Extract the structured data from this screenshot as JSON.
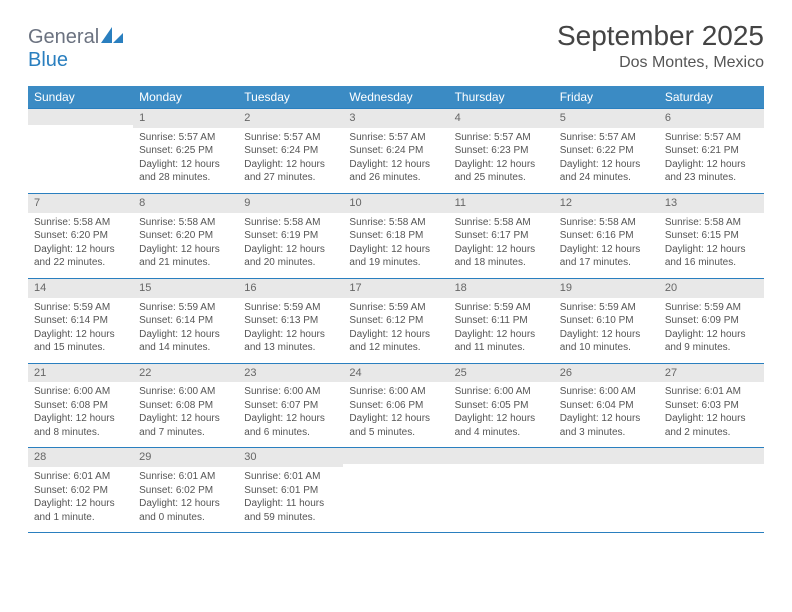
{
  "brand": {
    "part1": "General",
    "part2": "Blue",
    "color1": "#6b7280",
    "color2": "#2a7fbf"
  },
  "title": "September 2025",
  "location": "Dos Montes, Mexico",
  "header_bg": "#3b8bc4",
  "row_border": "#2a7fbf",
  "daynum_bg": "#e8e8e8",
  "days": [
    "Sunday",
    "Monday",
    "Tuesday",
    "Wednesday",
    "Thursday",
    "Friday",
    "Saturday"
  ],
  "weeks": [
    [
      {
        "empty": true
      },
      {
        "n": "1",
        "sunrise": "Sunrise: 5:57 AM",
        "sunset": "Sunset: 6:25 PM",
        "day1": "Daylight: 12 hours",
        "day2": "and 28 minutes."
      },
      {
        "n": "2",
        "sunrise": "Sunrise: 5:57 AM",
        "sunset": "Sunset: 6:24 PM",
        "day1": "Daylight: 12 hours",
        "day2": "and 27 minutes."
      },
      {
        "n": "3",
        "sunrise": "Sunrise: 5:57 AM",
        "sunset": "Sunset: 6:24 PM",
        "day1": "Daylight: 12 hours",
        "day2": "and 26 minutes."
      },
      {
        "n": "4",
        "sunrise": "Sunrise: 5:57 AM",
        "sunset": "Sunset: 6:23 PM",
        "day1": "Daylight: 12 hours",
        "day2": "and 25 minutes."
      },
      {
        "n": "5",
        "sunrise": "Sunrise: 5:57 AM",
        "sunset": "Sunset: 6:22 PM",
        "day1": "Daylight: 12 hours",
        "day2": "and 24 minutes."
      },
      {
        "n": "6",
        "sunrise": "Sunrise: 5:57 AM",
        "sunset": "Sunset: 6:21 PM",
        "day1": "Daylight: 12 hours",
        "day2": "and 23 minutes."
      }
    ],
    [
      {
        "n": "7",
        "sunrise": "Sunrise: 5:58 AM",
        "sunset": "Sunset: 6:20 PM",
        "day1": "Daylight: 12 hours",
        "day2": "and 22 minutes."
      },
      {
        "n": "8",
        "sunrise": "Sunrise: 5:58 AM",
        "sunset": "Sunset: 6:20 PM",
        "day1": "Daylight: 12 hours",
        "day2": "and 21 minutes."
      },
      {
        "n": "9",
        "sunrise": "Sunrise: 5:58 AM",
        "sunset": "Sunset: 6:19 PM",
        "day1": "Daylight: 12 hours",
        "day2": "and 20 minutes."
      },
      {
        "n": "10",
        "sunrise": "Sunrise: 5:58 AM",
        "sunset": "Sunset: 6:18 PM",
        "day1": "Daylight: 12 hours",
        "day2": "and 19 minutes."
      },
      {
        "n": "11",
        "sunrise": "Sunrise: 5:58 AM",
        "sunset": "Sunset: 6:17 PM",
        "day1": "Daylight: 12 hours",
        "day2": "and 18 minutes."
      },
      {
        "n": "12",
        "sunrise": "Sunrise: 5:58 AM",
        "sunset": "Sunset: 6:16 PM",
        "day1": "Daylight: 12 hours",
        "day2": "and 17 minutes."
      },
      {
        "n": "13",
        "sunrise": "Sunrise: 5:58 AM",
        "sunset": "Sunset: 6:15 PM",
        "day1": "Daylight: 12 hours",
        "day2": "and 16 minutes."
      }
    ],
    [
      {
        "n": "14",
        "sunrise": "Sunrise: 5:59 AM",
        "sunset": "Sunset: 6:14 PM",
        "day1": "Daylight: 12 hours",
        "day2": "and 15 minutes."
      },
      {
        "n": "15",
        "sunrise": "Sunrise: 5:59 AM",
        "sunset": "Sunset: 6:14 PM",
        "day1": "Daylight: 12 hours",
        "day2": "and 14 minutes."
      },
      {
        "n": "16",
        "sunrise": "Sunrise: 5:59 AM",
        "sunset": "Sunset: 6:13 PM",
        "day1": "Daylight: 12 hours",
        "day2": "and 13 minutes."
      },
      {
        "n": "17",
        "sunrise": "Sunrise: 5:59 AM",
        "sunset": "Sunset: 6:12 PM",
        "day1": "Daylight: 12 hours",
        "day2": "and 12 minutes."
      },
      {
        "n": "18",
        "sunrise": "Sunrise: 5:59 AM",
        "sunset": "Sunset: 6:11 PM",
        "day1": "Daylight: 12 hours",
        "day2": "and 11 minutes."
      },
      {
        "n": "19",
        "sunrise": "Sunrise: 5:59 AM",
        "sunset": "Sunset: 6:10 PM",
        "day1": "Daylight: 12 hours",
        "day2": "and 10 minutes."
      },
      {
        "n": "20",
        "sunrise": "Sunrise: 5:59 AM",
        "sunset": "Sunset: 6:09 PM",
        "day1": "Daylight: 12 hours",
        "day2": "and 9 minutes."
      }
    ],
    [
      {
        "n": "21",
        "sunrise": "Sunrise: 6:00 AM",
        "sunset": "Sunset: 6:08 PM",
        "day1": "Daylight: 12 hours",
        "day2": "and 8 minutes."
      },
      {
        "n": "22",
        "sunrise": "Sunrise: 6:00 AM",
        "sunset": "Sunset: 6:08 PM",
        "day1": "Daylight: 12 hours",
        "day2": "and 7 minutes."
      },
      {
        "n": "23",
        "sunrise": "Sunrise: 6:00 AM",
        "sunset": "Sunset: 6:07 PM",
        "day1": "Daylight: 12 hours",
        "day2": "and 6 minutes."
      },
      {
        "n": "24",
        "sunrise": "Sunrise: 6:00 AM",
        "sunset": "Sunset: 6:06 PM",
        "day1": "Daylight: 12 hours",
        "day2": "and 5 minutes."
      },
      {
        "n": "25",
        "sunrise": "Sunrise: 6:00 AM",
        "sunset": "Sunset: 6:05 PM",
        "day1": "Daylight: 12 hours",
        "day2": "and 4 minutes."
      },
      {
        "n": "26",
        "sunrise": "Sunrise: 6:00 AM",
        "sunset": "Sunset: 6:04 PM",
        "day1": "Daylight: 12 hours",
        "day2": "and 3 minutes."
      },
      {
        "n": "27",
        "sunrise": "Sunrise: 6:01 AM",
        "sunset": "Sunset: 6:03 PM",
        "day1": "Daylight: 12 hours",
        "day2": "and 2 minutes."
      }
    ],
    [
      {
        "n": "28",
        "sunrise": "Sunrise: 6:01 AM",
        "sunset": "Sunset: 6:02 PM",
        "day1": "Daylight: 12 hours",
        "day2": "and 1 minute."
      },
      {
        "n": "29",
        "sunrise": "Sunrise: 6:01 AM",
        "sunset": "Sunset: 6:02 PM",
        "day1": "Daylight: 12 hours",
        "day2": "and 0 minutes."
      },
      {
        "n": "30",
        "sunrise": "Sunrise: 6:01 AM",
        "sunset": "Sunset: 6:01 PM",
        "day1": "Daylight: 11 hours",
        "day2": "and 59 minutes."
      },
      {
        "empty": true
      },
      {
        "empty": true
      },
      {
        "empty": true
      },
      {
        "empty": true
      }
    ]
  ]
}
